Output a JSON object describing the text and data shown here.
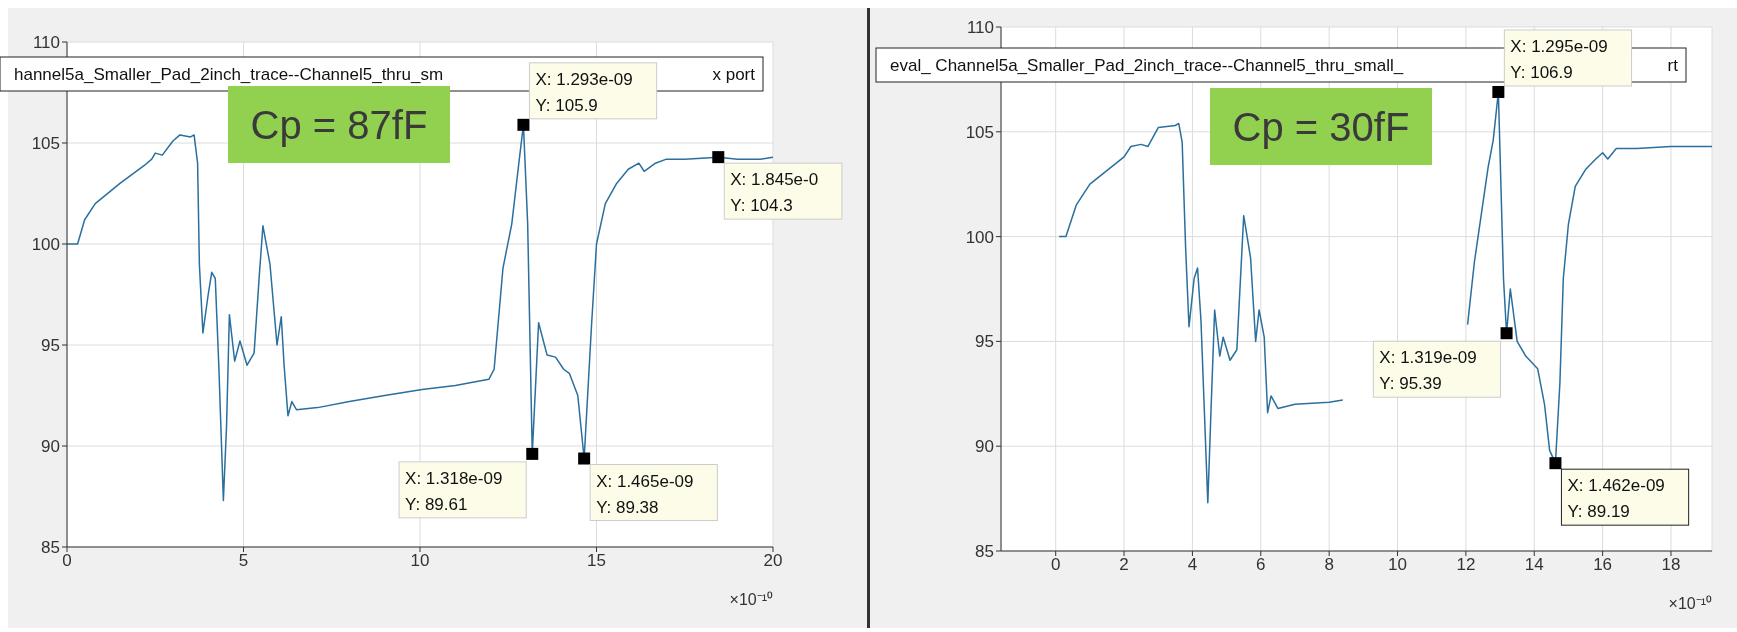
{
  "chart_data": [
    {
      "type": "line",
      "color": "#2a6f9e",
      "grid": true,
      "xlim": [
        0,
        20
      ],
      "xticks": [
        0,
        5,
        10,
        15,
        20
      ],
      "ylim": [
        85,
        110
      ],
      "yticks": [
        85,
        90,
        95,
        100,
        105,
        110
      ],
      "annotations": [
        "Cp = 87fF",
        "hannel5a_Smaller_Pad_2inch_trace--Channel5_thru_sm",
        "x port",
        "×10⁻¹⁰",
        {
          "text": "X: 1.293e-09\nY: 105.9",
          "x": 12.93,
          "y": 105.9
        },
        {
          "text": "X: 1.318e-09\nY: 89.61",
          "x": 13.18,
          "y": 89.61
        },
        {
          "text": "X: 1.465e-09\nY: 89.38",
          "x": 14.65,
          "y": 89.38
        },
        {
          "text": "X: 1.845e-0\nY: 104.3",
          "x": 18.45,
          "y": 104.3
        }
      ],
      "x": [
        0,
        0.3,
        0.5,
        0.8,
        1.5,
        2.2,
        2.4,
        2.5,
        2.7,
        3,
        3.2,
        3.5,
        3.6,
        3.7,
        3.75,
        3.85,
        4.0,
        4.1,
        4.2,
        4.3,
        4.43,
        4.52,
        4.6,
        4.75,
        4.9,
        5.1,
        5.3,
        5.45,
        5.55,
        5.75,
        5.95,
        6.07,
        6.15,
        6.26,
        6.37,
        6.5,
        7.1,
        8,
        9,
        10.06,
        11,
        11.95,
        12.1,
        12.35,
        12.6,
        12.8,
        12.93,
        13.05,
        13.18,
        13.36,
        13.6,
        13.84,
        14.07,
        14.23,
        14.47,
        14.65,
        14.86,
        15.0,
        15.25,
        15.57,
        15.9,
        16.2,
        16.35,
        16.67,
        16.98,
        17.5,
        18.45,
        19,
        19.65,
        20
      ],
      "values": [
        100,
        100,
        101.2,
        102,
        103,
        103.9,
        104.2,
        104.5,
        104.4,
        105.1,
        105.4,
        105.3,
        105.4,
        104,
        99,
        95.6,
        97.5,
        98.6,
        98.3,
        94,
        87.3,
        91,
        96.5,
        94.2,
        95.2,
        94,
        94.6,
        98.5,
        100.9,
        99,
        95,
        96.4,
        94,
        91.5,
        92.2,
        91.8,
        91.9,
        92.2,
        92.5,
        92.8,
        93,
        93.3,
        93.8,
        98.8,
        101,
        104,
        105.9,
        101,
        89.61,
        96.1,
        94.5,
        94.4,
        93.8,
        93.6,
        92.5,
        89.38,
        96,
        100,
        102,
        103,
        103.7,
        104,
        103.6,
        104,
        104.2,
        104.2,
        104.3,
        104.2,
        104.2,
        104.3
      ]
    },
    {
      "type": "line",
      "color": "#2a6f9e",
      "grid": true,
      "xlim": [
        -1.6,
        19.2
      ],
      "xticks": [
        0,
        2,
        4,
        6,
        8,
        10,
        12,
        14,
        16,
        18
      ],
      "ylim": [
        85,
        110
      ],
      "yticks": [
        85,
        90,
        95,
        100,
        105,
        110
      ],
      "annotations": [
        "Cp = 30fF",
        "eval_ Channel5a_Smaller_Pad_2inch_trace--Channel5_thru_small_",
        "rt",
        "×10⁻¹⁰",
        {
          "text": "X: 1.295e-09\nY: 106.9",
          "x": 12.95,
          "y": 106.9
        },
        {
          "text": "X: 1.319e-09\nY: 95.39",
          "x": 13.19,
          "y": 95.39
        },
        {
          "text": "X: 1.462e-09\nY: 89.19",
          "x": 14.62,
          "y": 89.19
        }
      ],
      "x": [
        0.1,
        0.3,
        0.6,
        1,
        2,
        2.2,
        2.5,
        2.7,
        3,
        3.5,
        3.6,
        3.7,
        3.8,
        3.9,
        4.05,
        4.15,
        4.25,
        4.45,
        4.55,
        4.65,
        4.8,
        4.9,
        5.1,
        5.3,
        5.5,
        5.7,
        5.85,
        5.95,
        6.1,
        6.2,
        6.3,
        6.5,
        7,
        8,
        8.4,
        10,
        12.05,
        12.25,
        12.65,
        12.8,
        12.95,
        13.1,
        13.19,
        13.3,
        13.5,
        13.75,
        14.1,
        14.3,
        14.45,
        14.62,
        14.75,
        14.85,
        15.0,
        15.2,
        15.5,
        15.8,
        16.0,
        16.15,
        16.4,
        17,
        18,
        19.2
      ],
      "values": [
        100,
        100,
        101.5,
        102.5,
        103.8,
        104.3,
        104.4,
        104.3,
        105.2,
        105.3,
        105.4,
        104.5,
        99.5,
        95.7,
        98,
        98.5,
        96,
        87.3,
        92,
        96.5,
        94.3,
        95.2,
        94.1,
        94.6,
        101,
        99,
        95,
        96.5,
        95.2,
        91.6,
        92.4,
        91.8,
        92,
        92.1,
        92.2,
        null,
        95.8,
        98.8,
        103.3,
        104.6,
        106.9,
        98,
        95.39,
        97.5,
        95,
        94.3,
        93.7,
        92,
        89.8,
        89.19,
        93,
        98,
        100.6,
        102.4,
        103.2,
        103.7,
        104,
        103.7,
        104.2,
        104.2,
        104.3,
        104.3
      ]
    }
  ]
}
